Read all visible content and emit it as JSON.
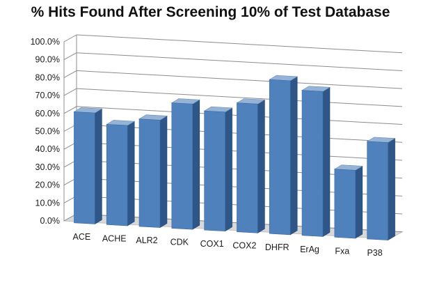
{
  "chart_data": {
    "type": "bar",
    "title": "% Hits Found After Screening 10% of Test Database",
    "xlabel": "",
    "ylabel": "",
    "categories": [
      "ACE",
      "ACHE",
      "ALR2",
      "CDK",
      "COX1",
      "COX2",
      "DHFR",
      "ErAg",
      "Fxa",
      "P38"
    ],
    "values": [
      62.0,
      56.0,
      60.0,
      70.0,
      66.5,
      72.0,
      86.0,
      81.0,
      38.0,
      54.5
    ],
    "ylim": [
      0,
      100
    ],
    "yticks": [
      "0.0%",
      "10.0%",
      "20.0%",
      "30.0%",
      "40.0%",
      "50.0%",
      "60.0%",
      "70.0%",
      "80.0%",
      "90.0%",
      "100.0%"
    ],
    "grid": true,
    "legend": "none",
    "three_d": true,
    "colors": {
      "bar_front": "#4f81bd",
      "bar_side": "#2f5689",
      "bar_top": "#95b3d7",
      "floor": "#d9d9d9",
      "gridline": "#8c8c8c"
    }
  }
}
